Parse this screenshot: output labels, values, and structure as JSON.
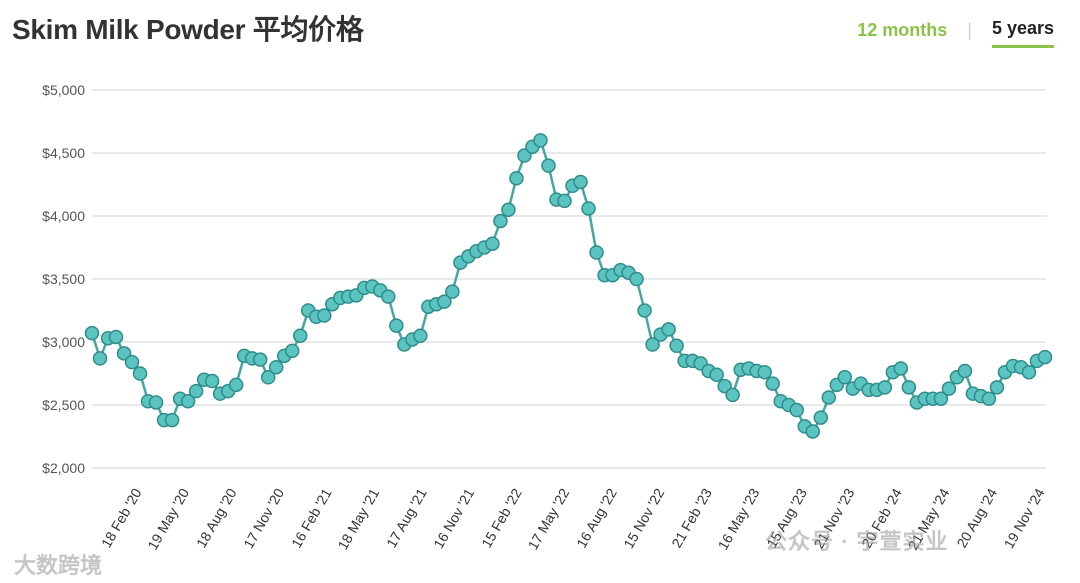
{
  "header": {
    "title": "Skim Milk Powder 平均价格",
    "tabs": [
      {
        "label": "12 months",
        "active": false
      },
      {
        "label": "5 years",
        "active": true
      }
    ]
  },
  "watermarks": {
    "left": "大数跨境",
    "right": "公众号 · 宇萱实业"
  },
  "colors": {
    "line": "#46a6a4",
    "marker_fill": "#5cc4c0",
    "marker_stroke": "#2e8d8a",
    "accent": "#8bc34a",
    "grid": "#e2e2e2"
  },
  "chart_data": {
    "type": "line",
    "title": "Skim Milk Powder 平均价格",
    "ylim": [
      2000,
      5000
    ],
    "yticks": [
      2000,
      2500,
      3000,
      3500,
      4000,
      4500,
      5000
    ],
    "ytick_labels": [
      "$2,000",
      "$2,500",
      "$3,000",
      "$3,500",
      "$4,000",
      "$4,500",
      "$5,000"
    ],
    "xtick_labels": [
      "18 Feb '20",
      "19 May '20",
      "18 Aug '20",
      "17 Nov '20",
      "16 Feb '21",
      "18 May '21",
      "17 Aug '21",
      "16 Nov '21",
      "15 Feb '22",
      "17 May '22",
      "16 Aug '22",
      "15 Nov '22",
      "21 Feb '23",
      "16 May '23",
      "15 Aug '23",
      "21 Nov '23",
      "20 Feb '24",
      "21 May '24",
      "20 Aug '24",
      "19 Nov '24"
    ],
    "grid": true,
    "series": [
      {
        "values": [
          3070,
          2870,
          3030,
          3040,
          2910,
          2840,
          2750,
          2530,
          2520,
          2380,
          2380,
          2550,
          2530,
          2610,
          2700,
          2690,
          2590,
          2610,
          2660,
          2890,
          2870,
          2860,
          2720,
          2800,
          2890,
          2930,
          3050,
          3250,
          3200,
          3210,
          3300,
          3350,
          3360,
          3370,
          3430,
          3440,
          3410,
          3360,
          3130,
          2980,
          3020,
          3050,
          3280,
          3300,
          3320,
          3400,
          3630,
          3680,
          3720,
          3750,
          3780,
          3960,
          4050,
          4300,
          4480,
          4550,
          4600,
          4400,
          4130,
          4120,
          4240,
          4270,
          4060,
          3710,
          3530,
          3530,
          3570,
          3550,
          3500,
          3250,
          2980,
          3060,
          3100,
          2970,
          2850,
          2850,
          2830,
          2770,
          2740,
          2650,
          2580,
          2780,
          2790,
          2770,
          2760,
          2670,
          2530,
          2500,
          2460,
          2330,
          2290,
          2400,
          2560,
          2660,
          2720,
          2630,
          2670,
          2620,
          2620,
          2640,
          2760,
          2790,
          2640,
          2520,
          2550,
          2550,
          2550,
          2630,
          2720,
          2770,
          2590,
          2570,
          2550,
          2640,
          2760,
          2810,
          2800,
          2760,
          2850,
          2880
        ]
      }
    ]
  }
}
